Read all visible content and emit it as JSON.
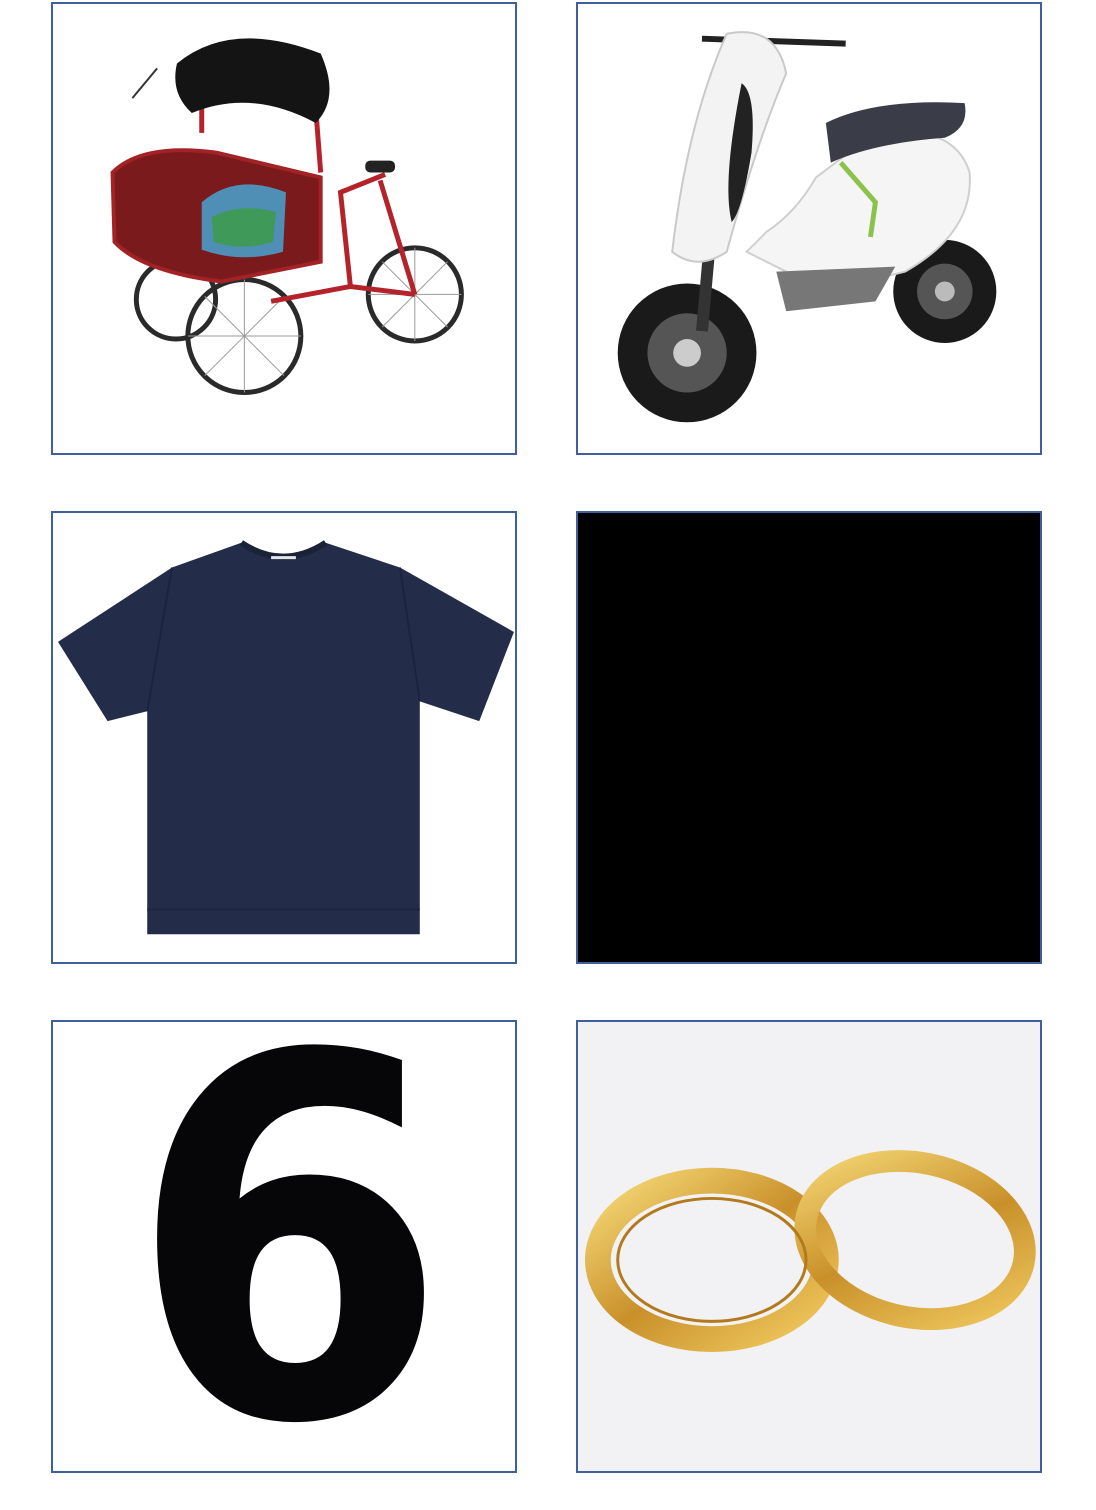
{
  "cards": [
    {
      "name": "cycle-rickshaw",
      "icon": "rickshaw-icon"
    },
    {
      "name": "electric-scooter",
      "icon": "scooter-icon"
    },
    {
      "name": "tshirt",
      "icon": "tshirt-icon",
      "color": "#232c48"
    },
    {
      "name": "black-square",
      "icon": "blank-icon",
      "color": "#000000"
    },
    {
      "name": "number-six",
      "icon": "digit-six-icon",
      "digit": "6"
    },
    {
      "name": "gold-rings",
      "icon": "rings-icon",
      "color": "#d9a830"
    }
  ],
  "colors": {
    "border": "#3f5f9f"
  }
}
